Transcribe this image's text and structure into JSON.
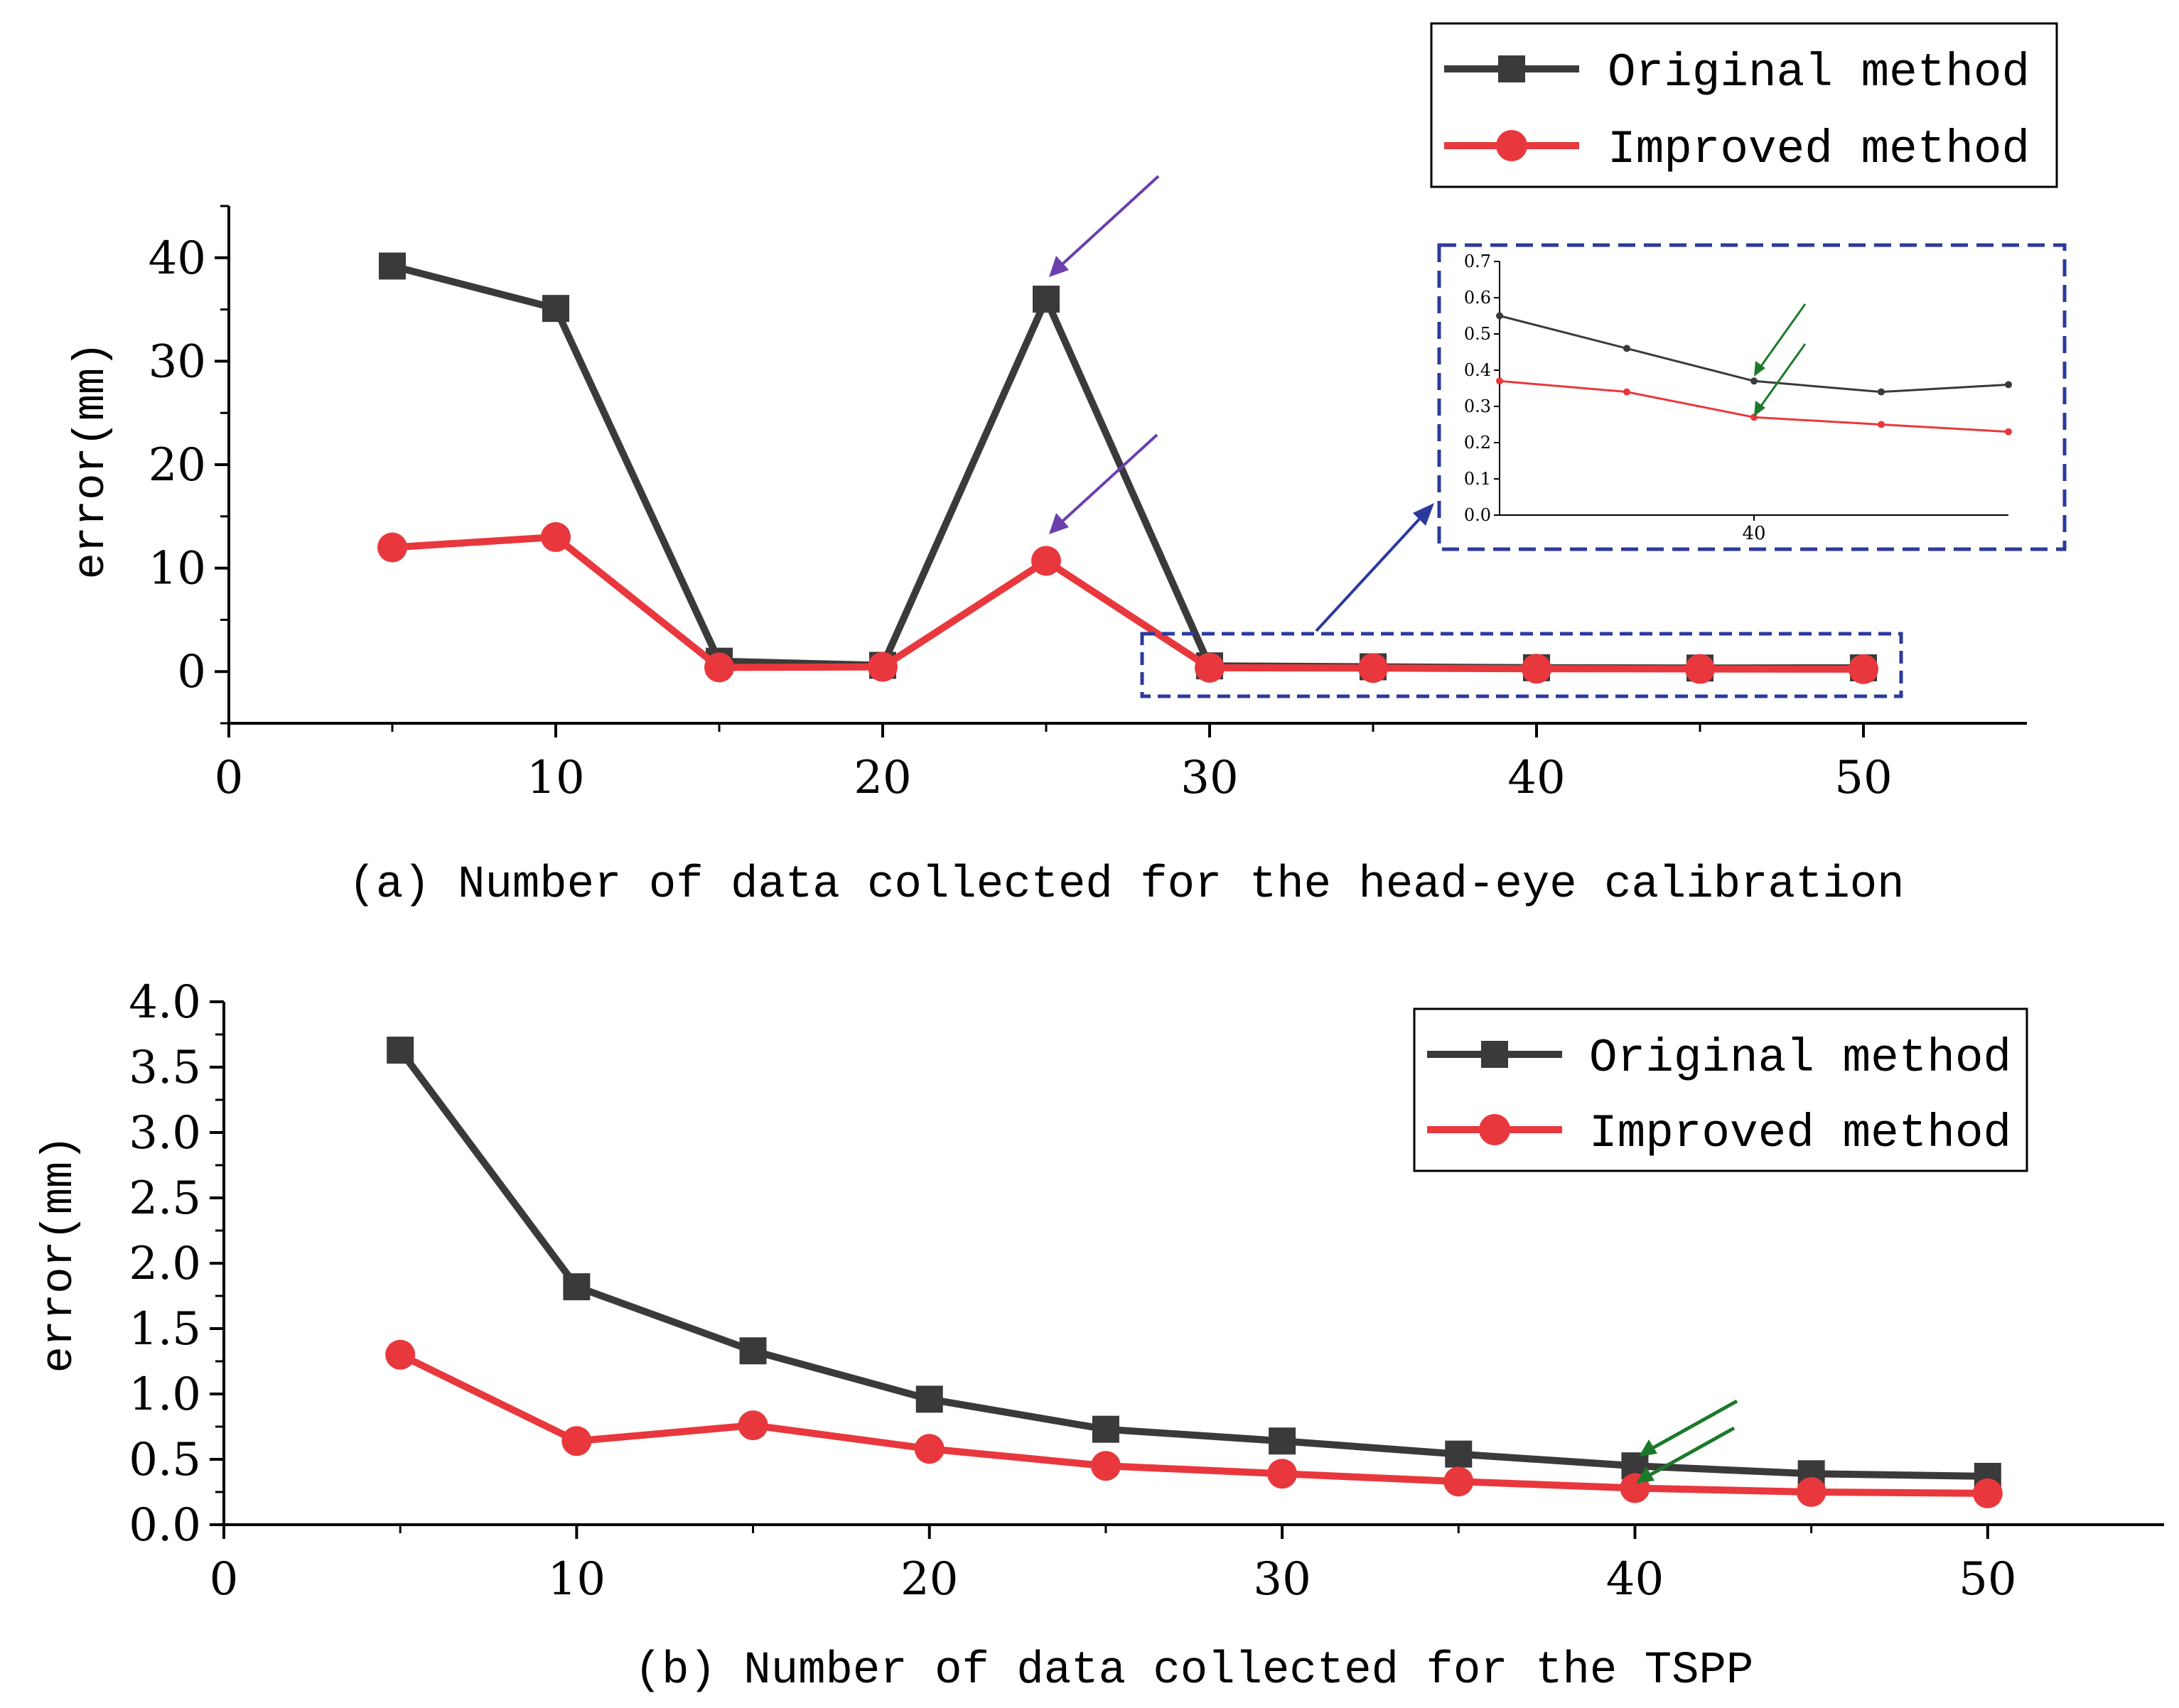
{
  "colors": {
    "original": "#3a3a3a",
    "improved": "#e8383d",
    "axis": "#000000",
    "zoom_box": "#2b3a9e",
    "purple_arrow": "#6a3fb0",
    "green_arrow": "#1b7a2a",
    "blue_arrow": "#2b3a9e"
  },
  "chart_data": [
    {
      "id": "a",
      "type": "line",
      "xlabel": "(a) Number of data collected for the head-eye calibration",
      "ylabel": "error(mm)",
      "xlim": [
        0,
        55
      ],
      "ylim": [
        -5,
        45
      ],
      "xticks": [
        0,
        10,
        20,
        30,
        40,
        50
      ],
      "xtick_labels": [
        "0",
        "10",
        "20",
        "30",
        "40",
        "50"
      ],
      "yticks": [
        0,
        10,
        20,
        30,
        40
      ],
      "ytick_labels": [
        "0",
        "10",
        "20",
        "30",
        "40"
      ],
      "legend": {
        "position": "top-right",
        "labels": [
          "Original method",
          "Improved method"
        ]
      },
      "series": [
        {
          "name": "Original method",
          "marker": "square",
          "x": [
            5,
            10,
            15,
            20,
            25,
            30,
            35,
            40,
            45,
            50
          ],
          "y": [
            39.2,
            35.1,
            1.0,
            0.6,
            36.0,
            0.55,
            0.46,
            0.37,
            0.34,
            0.36
          ]
        },
        {
          "name": "Improved method",
          "marker": "circle",
          "x": [
            5,
            10,
            15,
            20,
            25,
            30,
            35,
            40,
            45,
            50
          ],
          "y": [
            12.0,
            13.0,
            0.4,
            0.45,
            10.7,
            0.37,
            0.34,
            0.27,
            0.25,
            0.23
          ]
        }
      ],
      "annotations": "purple arrows at x=25 peaks; dashed zoom box around x=30-50 linked to inset",
      "inset": {
        "type": "line",
        "xlim": [
          30,
          50
        ],
        "ylim": [
          0,
          0.7
        ],
        "xticks": [
          40
        ],
        "xtick_labels": [
          "40"
        ],
        "yticks": [
          0,
          0.1,
          0.2,
          0.3,
          0.4,
          0.5,
          0.6,
          0.7
        ],
        "ytick_labels": [
          "0.0",
          "0.1",
          "0.2",
          "0.3",
          "0.4",
          "0.5",
          "0.6",
          "0.7"
        ],
        "series": [
          {
            "name": "Original method",
            "x": [
              30,
              35,
              40,
              45,
              50
            ],
            "y": [
              0.55,
              0.46,
              0.37,
              0.34,
              0.36
            ]
          },
          {
            "name": "Improved method",
            "x": [
              30,
              35,
              40,
              45,
              50
            ],
            "y": [
              0.37,
              0.34,
              0.27,
              0.25,
              0.23
            ]
          }
        ],
        "annotations": "green arrows pointing at x=40 points"
      }
    },
    {
      "id": "b",
      "type": "line",
      "xlabel": "(b) Number of data collected for the TSPP",
      "ylabel": "error(mm)",
      "xlim": [
        0,
        55
      ],
      "ylim": [
        0,
        4.0
      ],
      "xticks": [
        0,
        10,
        20,
        30,
        40,
        50
      ],
      "xtick_labels": [
        "0",
        "10",
        "20",
        "30",
        "40",
        "50"
      ],
      "yticks": [
        0,
        0.5,
        1.0,
        1.5,
        2.0,
        2.5,
        3.0,
        3.5,
        4.0
      ],
      "ytick_labels": [
        "0.0",
        "0.5",
        "1.0",
        "1.5",
        "2.0",
        "2.5",
        "3.0",
        "3.5",
        "4.0"
      ],
      "legend": {
        "position": "top-right",
        "labels": [
          "Original method",
          "Improved method"
        ]
      },
      "series": [
        {
          "name": "Original method",
          "marker": "square",
          "x": [
            5,
            10,
            15,
            20,
            25,
            30,
            35,
            40,
            45,
            50
          ],
          "y": [
            3.63,
            1.82,
            1.33,
            0.96,
            0.73,
            0.64,
            0.54,
            0.45,
            0.39,
            0.37
          ]
        },
        {
          "name": "Improved method",
          "marker": "circle",
          "x": [
            5,
            10,
            15,
            20,
            25,
            30,
            35,
            40,
            45,
            50
          ],
          "y": [
            1.3,
            0.64,
            0.76,
            0.58,
            0.45,
            0.39,
            0.33,
            0.28,
            0.25,
            0.24
          ]
        }
      ],
      "annotations": "green arrows pointing at x=40 points"
    }
  ]
}
